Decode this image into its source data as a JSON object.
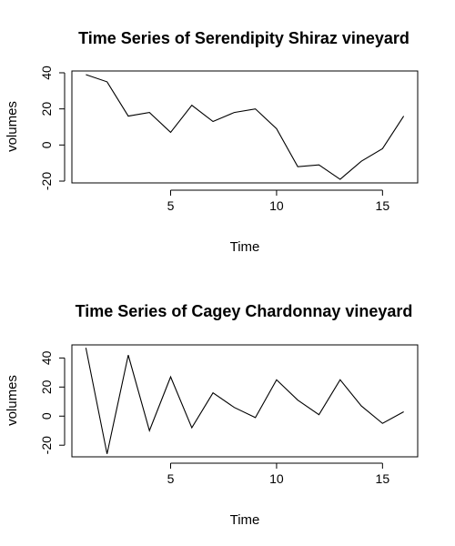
{
  "chart_data": [
    {
      "type": "line",
      "title": "Time Series of Serendipity Shiraz vineyard",
      "xlabel": "Time",
      "ylabel": "volumes",
      "xlim": [
        0.34,
        16.66
      ],
      "ylim": [
        -21,
        41
      ],
      "xticks": [
        5,
        10,
        15
      ],
      "yticks": [
        -20,
        0,
        20,
        40
      ],
      "grid": false,
      "x": [
        1,
        2,
        3,
        4,
        5,
        6,
        7,
        8,
        9,
        10,
        11,
        12,
        13,
        14,
        15,
        16
      ],
      "series": [
        {
          "values": [
            39,
            35,
            16,
            18,
            7,
            22,
            13,
            18,
            20,
            9,
            -12,
            -11,
            -19,
            -9,
            -2,
            16
          ]
        }
      ]
    },
    {
      "type": "line",
      "title": "Time Series of Cagey Chardonnay vineyard",
      "xlabel": "Time",
      "ylabel": "volumes",
      "xlim": [
        0.34,
        16.66
      ],
      "ylim": [
        -28,
        49
      ],
      "xticks": [
        5,
        10,
        15
      ],
      "yticks": [
        -20,
        0,
        20,
        40
      ],
      "grid": false,
      "x": [
        1,
        2,
        3,
        4,
        5,
        6,
        7,
        8,
        9,
        10,
        11,
        12,
        13,
        14,
        15,
        16
      ],
      "series": [
        {
          "values": [
            47,
            -26,
            42,
            -10,
            27,
            -8,
            16,
            6,
            -1,
            25,
            11,
            1,
            25,
            7,
            -5,
            3
          ]
        }
      ]
    }
  ]
}
